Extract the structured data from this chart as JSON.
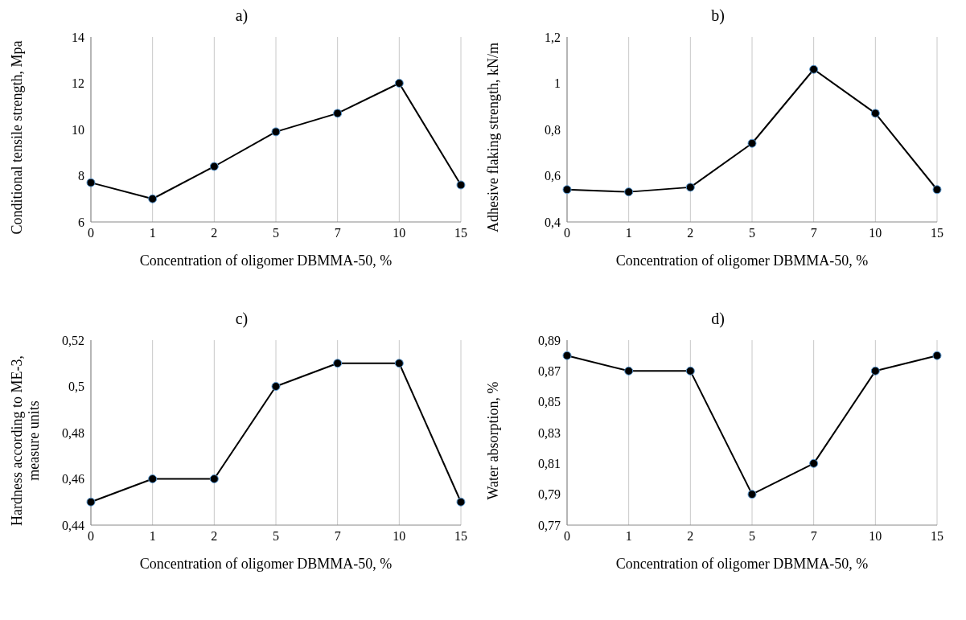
{
  "chart_data": [
    {
      "type": "line",
      "title": "a)",
      "xlabel": "Concentration of oligomer DBMMA-50, %",
      "ylabel": "Conditional tensile strength, Mpa",
      "categories": [
        "0",
        "1",
        "2",
        "5",
        "7",
        "10",
        "15"
      ],
      "values": [
        7.7,
        7.0,
        8.4,
        9.9,
        10.7,
        12.0,
        7.6
      ],
      "color": "#000000",
      "ylim": [
        6,
        14
      ],
      "yticks": [
        6,
        8,
        10,
        12,
        14
      ],
      "grid": "x",
      "marker": "circle",
      "line_style": "solid"
    },
    {
      "type": "line",
      "title": "b)",
      "xlabel": "Concentration of oligomer DBMMA-50, %",
      "ylabel": "Adhesive flaking strength, kN/m",
      "categories": [
        "0",
        "1",
        "2",
        "5",
        "7",
        "10",
        "15"
      ],
      "values": [
        0.54,
        0.53,
        0.55,
        0.74,
        1.06,
        0.87,
        0.54
      ],
      "color": "#000000",
      "ylim": [
        0.4,
        1.2
      ],
      "yticks": [
        {
          "value": 0.4,
          "label": "0,4"
        },
        {
          "value": 0.6,
          "label": "0,6"
        },
        {
          "value": 0.8,
          "label": "0,8"
        },
        1,
        {
          "value": 1.2,
          "label": "1,2"
        }
      ],
      "grid": "x",
      "marker": "circle",
      "line_style": "solid"
    },
    {
      "type": "line",
      "title": "c)",
      "xlabel": "Concentration of oligomer DBMMA-50, %",
      "ylabel": "Hardness according to ME-3, measure units",
      "categories": [
        "0",
        "1",
        "2",
        "5",
        "7",
        "10",
        "15"
      ],
      "values": [
        0.45,
        0.46,
        0.46,
        0.5,
        0.51,
        0.51,
        0.45
      ],
      "color": "#000000",
      "ylim": [
        0.44,
        0.52
      ],
      "yticks": [
        {
          "value": 0.44,
          "label": "0,44"
        },
        {
          "value": 0.46,
          "label": "0,46"
        },
        {
          "value": 0.48,
          "label": "0,48"
        },
        {
          "value": 0.5,
          "label": "0,5"
        },
        {
          "value": 0.52,
          "label": "0,52"
        }
      ],
      "grid": "x",
      "marker": "circle",
      "line_style": "solid"
    },
    {
      "type": "line",
      "title": "d)",
      "xlabel": "Concentration of oligomer DBMMA-50, %",
      "ylabel": "Water absorption, %",
      "categories": [
        "0",
        "1",
        "2",
        "5",
        "7",
        "10",
        "15"
      ],
      "values": [
        0.88,
        0.87,
        0.87,
        0.79,
        0.81,
        0.87,
        0.88
      ],
      "color": "#000000",
      "ylim": [
        0.77,
        0.89
      ],
      "yticks": [
        {
          "value": 0.77,
          "label": "0,77"
        },
        {
          "value": 0.79,
          "label": "0,79"
        },
        {
          "value": 0.81,
          "label": "0,81"
        },
        {
          "value": 0.83,
          "label": "0,83"
        },
        {
          "value": 0.85,
          "label": "0,85"
        },
        {
          "value": 0.87,
          "label": "0,87"
        },
        {
          "value": 0.89,
          "label": "0,89"
        }
      ],
      "grid": "x",
      "marker": "circle",
      "line_style": "solid"
    }
  ]
}
